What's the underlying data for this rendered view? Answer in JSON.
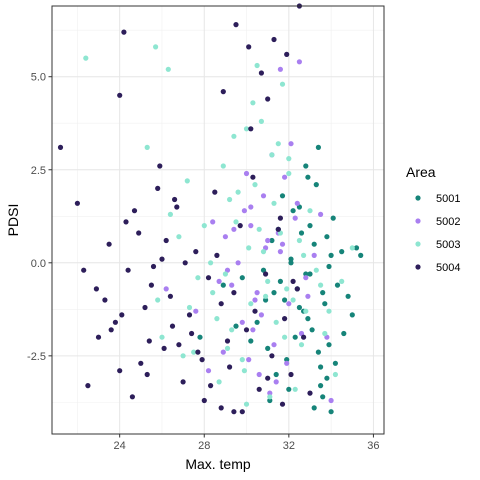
{
  "chart_data": {
    "type": "scatter",
    "title": "",
    "xlabel": "Max. temp",
    "ylabel": "PDSI",
    "xlim": [
      20.8,
      36.5
    ],
    "ylim": [
      -4.6,
      6.9
    ],
    "x_ticks": [
      24,
      28,
      32,
      36
    ],
    "x_tick_labels": [
      "24",
      "28",
      "32",
      "36"
    ],
    "y_ticks": [
      -2.5,
      0.0,
      2.5,
      5.0
    ],
    "y_tick_labels": [
      "-2.5",
      "0.0",
      "2.5",
      "5.0"
    ],
    "grid": true,
    "legend": {
      "title": "Area",
      "position": "right"
    },
    "series": [
      {
        "name": "5001",
        "color": "#168479",
        "x": [
          32.1,
          32.8,
          33.2,
          33.6,
          34.0,
          32.5,
          31.6,
          33.0,
          33.9,
          32.3,
          31.2,
          32.9,
          33.4,
          34.3,
          33.8,
          32.2,
          31.8,
          33.1,
          34.5,
          33.5,
          32.6,
          30.8,
          31.0,
          32.0,
          33.7,
          34.8,
          35.2,
          33.3,
          32.4,
          31.5,
          30.5,
          29.8,
          31.9,
          33.6,
          34.1,
          32.7,
          33.0,
          31.4,
          30.2,
          34.6,
          33.2,
          32.1,
          31.7,
          33.9,
          35.0,
          32.8,
          31.3,
          30.9,
          33.5,
          34.2,
          29.5,
          28.9,
          27.8,
          31.1,
          33.8,
          32.5,
          34.0,
          33.4,
          35.4,
          32.9
        ],
        "y": [
          0.1,
          -0.3,
          0.5,
          -0.8,
          0.2,
          -1.2,
          -0.5,
          1.0,
          -0.1,
          -2.0,
          0.6,
          -1.5,
          -2.4,
          -0.6,
          -3.1,
          1.4,
          -1.0,
          -1.8,
          0.3,
          -2.8,
          0.8,
          -0.2,
          -2.3,
          -3.4,
          -1.1,
          -0.9,
          0.4,
          2.1,
          -0.7,
          0.9,
          -1.6,
          -0.4,
          -2.6,
          -3.6,
          1.2,
          -1.3,
          -0.3,
          -3.0,
          -2.1,
          -1.9,
          -3.9,
          0.0,
          1.8,
          -2.2,
          -1.4,
          2.6,
          -0.8,
          -1.0,
          -3.3,
          -2.7,
          -1.7,
          -0.6,
          -2.0,
          -3.7,
          0.7,
          1.5,
          -4.0,
          3.1,
          0.2,
          2.3
        ]
      },
      {
        "name": "5002",
        "color": "#a97ff0",
        "x": [
          31.0,
          30.5,
          32.3,
          29.8,
          31.6,
          30.2,
          32.8,
          31.3,
          29.4,
          30.8,
          32.0,
          31.8,
          28.7,
          30.1,
          31.5,
          32.6,
          29.9,
          30.6,
          31.2,
          33.2,
          28.4,
          27.6,
          29.1,
          30.9,
          31.9,
          32.4,
          30.3,
          29.6,
          31.1,
          32.9,
          33.8,
          30.0,
          28.9,
          31.7,
          30.4,
          32.1,
          29.3,
          33.5,
          30.7,
          31.4,
          34.0,
          29.0,
          28.2,
          32.5,
          26.2,
          31.6,
          30.2
        ],
        "y": [
          0.6,
          -0.8,
          1.2,
          -1.6,
          0.3,
          1.0,
          -0.4,
          -2.2,
          0.9,
          1.8,
          -1.1,
          2.3,
          -0.5,
          -2.6,
          0.8,
          -1.9,
          1.4,
          -3.0,
          2.9,
          0.2,
          1.1,
          -1.3,
          -0.2,
          0.4,
          -2.7,
          1.6,
          -1.8,
          0.0,
          -3.5,
          -0.9,
          -2.0,
          2.4,
          -2.4,
          0.5,
          -1.0,
          3.2,
          -0.6,
          1.3,
          -1.4,
          -3.2,
          -3.7,
          0.7,
          -2.9,
          5.4,
          -0.7,
          5.2,
          1.5
        ]
      },
      {
        "name": "5003",
        "color": "#8ee6d1",
        "x": [
          30.1,
          31.0,
          29.5,
          32.2,
          30.6,
          31.8,
          29.0,
          30.4,
          32.7,
          28.6,
          31.3,
          29.8,
          30.9,
          32.5,
          31.5,
          28.3,
          29.3,
          30.7,
          31.9,
          33.0,
          27.7,
          28.9,
          30.3,
          31.6,
          32.3,
          29.6,
          27.3,
          30.0,
          31.2,
          29.1,
          28.0,
          32.8,
          33.5,
          31.7,
          30.5,
          29.4,
          26.8,
          27.2,
          28.4,
          25.8,
          26.4,
          25.3,
          27.0,
          26.0,
          29.9,
          31.4,
          30.8,
          32.0,
          32.6,
          33.3,
          34.5,
          35.0,
          33.7,
          34.2,
          27.5,
          29.2,
          28.7,
          30.2,
          31.1,
          22.4,
          25.7,
          26.3,
          30.0,
          32.0,
          33.9
        ],
        "y": [
          0.4,
          -0.5,
          1.1,
          -1.0,
          0.9,
          -2.0,
          -0.3,
          2.1,
          0.2,
          -1.5,
          1.6,
          -2.6,
          -0.9,
          0.6,
          3.2,
          0.0,
          -1.8,
          3.8,
          -0.7,
          1.4,
          -0.4,
          2.6,
          4.3,
          0.8,
          -3.4,
          1.9,
          -1.2,
          -3.8,
          2.9,
          -2.3,
          1.0,
          -1.3,
          -0.6,
          4.8,
          5.3,
          3.4,
          0.7,
          2.2,
          -0.8,
          -1.0,
          1.3,
          3.1,
          -2.5,
          -2.0,
          -2.9,
          -1.6,
          0.3,
          2.4,
          -2.2,
          -0.2,
          -0.5,
          0.4,
          -1.9,
          -3.0,
          -2.4,
          1.7,
          -3.2,
          -1.1,
          -3.6,
          5.5,
          5.8,
          5.2,
          3.6,
          2.8,
          -1.3
        ]
      },
      {
        "name": "5004",
        "color": "#2d1e5a",
        "x": [
          21.2,
          22.0,
          22.3,
          23.0,
          23.5,
          23.8,
          24.0,
          24.3,
          24.6,
          24.9,
          25.2,
          25.5,
          25.8,
          26.1,
          26.4,
          26.7,
          27.0,
          27.3,
          27.6,
          27.9,
          28.2,
          28.5,
          28.8,
          29.1,
          29.4,
          29.7,
          30.0,
          30.3,
          30.6,
          30.9,
          31.2,
          31.5,
          31.8,
          32.1,
          32.4,
          32.7,
          33.0,
          24.2,
          24.0,
          23.3,
          22.9,
          22.5,
          24.7,
          25.0,
          25.6,
          26.2,
          26.8,
          27.4,
          28.0,
          28.6,
          29.2,
          29.8,
          30.4,
          31.0,
          31.6,
          32.2,
          23.6,
          24.4,
          25.3,
          25.9,
          26.5,
          27.1,
          27.7,
          28.3,
          28.9,
          29.5,
          30.1,
          30.7,
          31.3,
          31.9,
          32.5,
          28.8,
          29.4,
          30.2,
          31.0,
          31.7,
          24.1,
          25.4,
          26.0,
          26.6
        ],
        "y": [
          3.1,
          1.6,
          -0.2,
          -2.0,
          0.5,
          -1.6,
          -2.9,
          1.1,
          -3.6,
          0.8,
          -1.2,
          -0.6,
          2.0,
          -2.3,
          -0.9,
          1.5,
          -3.2,
          -1.4,
          0.3,
          -2.6,
          -0.4,
          1.9,
          -1.1,
          -2.1,
          -0.8,
          1.0,
          -1.8,
          2.3,
          -3.4,
          -0.3,
          -2.5,
          0.9,
          -1.5,
          -3.0,
          -0.7,
          -2.0,
          -3.5,
          6.2,
          4.5,
          -1.0,
          -0.7,
          -3.3,
          1.4,
          -2.7,
          -0.1,
          0.6,
          -2.2,
          -1.9,
          -3.7,
          0.2,
          -2.8,
          -4.0,
          -1.3,
          -3.1,
          1.2,
          -0.5,
          -1.8,
          -0.2,
          -3.0,
          2.6,
          -1.7,
          0.0,
          -2.4,
          -3.3,
          4.6,
          6.4,
          5.8,
          5.1,
          6.0,
          5.6,
          6.9,
          -3.9,
          -4.0,
          3.6,
          4.4,
          -3.8,
          -1.4,
          -2.1,
          0.1,
          1.7
        ]
      }
    ]
  }
}
